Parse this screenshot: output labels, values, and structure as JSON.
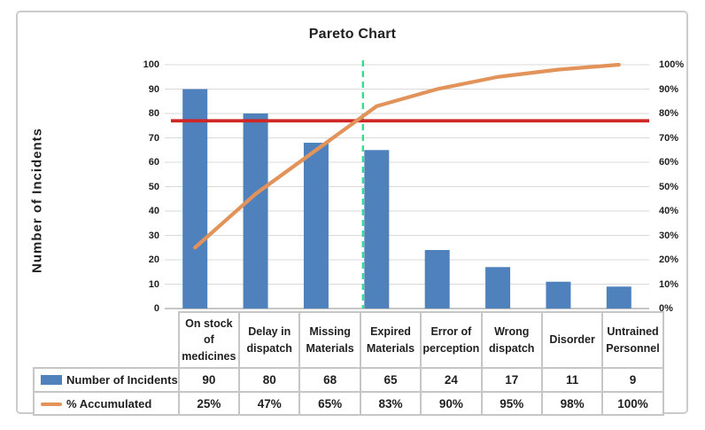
{
  "chart_data": {
    "type": "bar",
    "subtype": "pareto-combo",
    "title": "Pareto Chart",
    "ylabel": "Number of Incidents",
    "categories": [
      "On stock of medicines",
      "Delay in dispatch",
      "Missing Materials",
      "Expired Materials",
      "Error of perception",
      "Wrong dispatch",
      "Disorder",
      "Untrained Personnel"
    ],
    "series": [
      {
        "name": "Number of Incidents",
        "kind": "bar",
        "color": "#4f81bd",
        "values": [
          90,
          80,
          68,
          65,
          24,
          17,
          11,
          9
        ],
        "display": [
          "90",
          "80",
          "68",
          "65",
          "24",
          "17",
          "11",
          "9"
        ]
      },
      {
        "name": "% Accumulated",
        "kind": "line",
        "color": "#e2935a",
        "values": [
          25,
          47,
          65,
          83,
          90,
          95,
          98,
          100
        ],
        "display": [
          "25%",
          "47%",
          "65%",
          "83%",
          "90%",
          "95%",
          "98%",
          "100%"
        ]
      }
    ],
    "left_axis": {
      "min": 0,
      "max": 100,
      "step": 10,
      "suffix": ""
    },
    "right_axis": {
      "min": 0,
      "max": 100,
      "step": 10,
      "suffix": "%"
    },
    "threshold_line": {
      "value": 77,
      "color": "#d12626"
    },
    "cutoff_line": {
      "color": "#35dd8f",
      "style": "dashed"
    },
    "grid": true,
    "legend_position": "table-left",
    "colors": {
      "gridline": "#d9d9d9",
      "axis_line": "#b3b3b3",
      "chart_border": "#cbcbcb",
      "text": "#1f1f1f"
    }
  }
}
